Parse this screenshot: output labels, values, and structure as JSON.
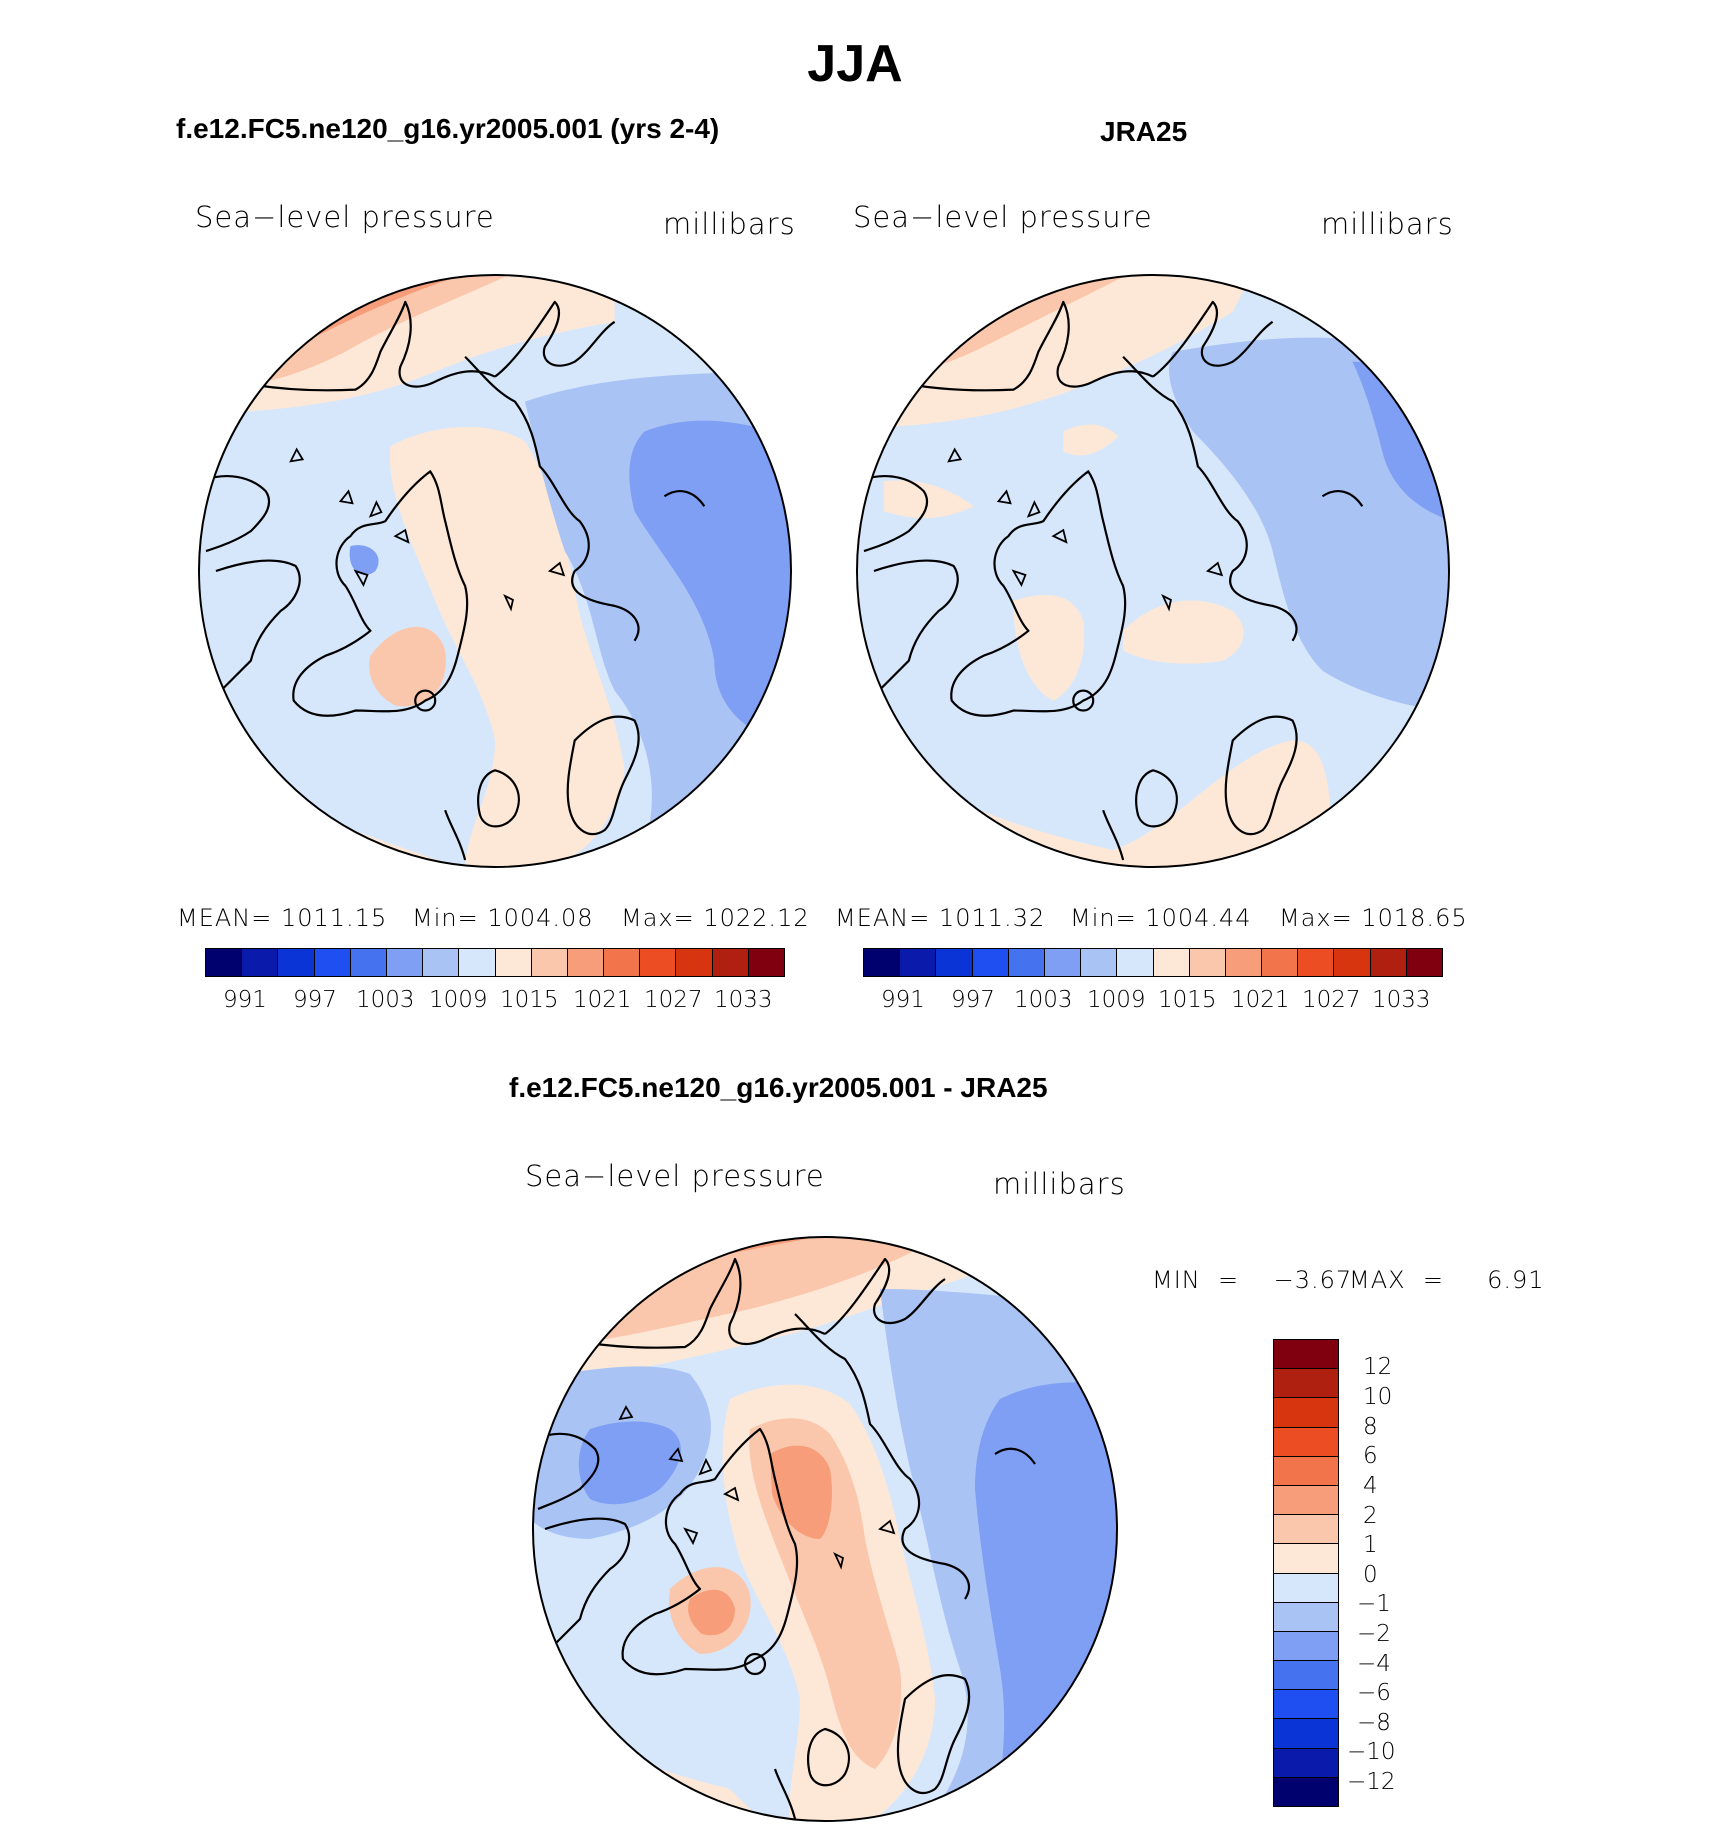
{
  "season": "JJA",
  "panels": {
    "model": {
      "case_title": "f.e12.FC5.ne120_g16.yr2005.001 (yrs 2-4)",
      "variable": "Sea−level pressure",
      "units": "millibars",
      "stats": {
        "mean": "MEAN=  1011.15",
        "min": "Min=  1004.08",
        "max": "Max=  1022.12"
      }
    },
    "obs": {
      "case_title": "JRA25",
      "variable": "Sea−level pressure",
      "units": "millibars",
      "stats": {
        "mean": "MEAN=  1011.32",
        "min": "Min=  1004.44",
        "max": "Max=  1018.65"
      }
    },
    "diff": {
      "case_title": "f.e12.FC5.ne120_g16.yr2005.001 - JRA25",
      "variable": "Sea−level pressure",
      "units": "millibars",
      "stats": {
        "min": "MIN  =    −3.67",
        "max": "MAX  =     6.91"
      }
    }
  },
  "colorbar_abs": {
    "labels": [
      "991",
      "997",
      "1003",
      "1009",
      "1015",
      "1021",
      "1027",
      "1033"
    ],
    "colors": [
      "#00006e",
      "#0a1bab",
      "#0b34d6",
      "#1f4ff0",
      "#4573f0",
      "#7e9ff3",
      "#a9c3f5",
      "#d6e7fb",
      "#fde8d8",
      "#fbc7ac",
      "#f79d79",
      "#f2744b",
      "#ed4d22",
      "#d63510",
      "#b02010",
      "#800010"
    ]
  },
  "colorbar_diff": {
    "labels": [
      "12",
      "10",
      "8",
      "6",
      "4",
      "2",
      "1",
      "0",
      "−1",
      "−2",
      "−4",
      "−6",
      "−8",
      "−10",
      "−12"
    ],
    "colors": [
      "#800010",
      "#b02010",
      "#d63510",
      "#ed4d22",
      "#f2744b",
      "#f79d79",
      "#fbc7ac",
      "#fde8d8",
      "#d6e7fb",
      "#a9c3f5",
      "#7e9ff3",
      "#4573f0",
      "#1f4ff0",
      "#0b34d6",
      "#0a1bab",
      "#00006e"
    ]
  }
}
